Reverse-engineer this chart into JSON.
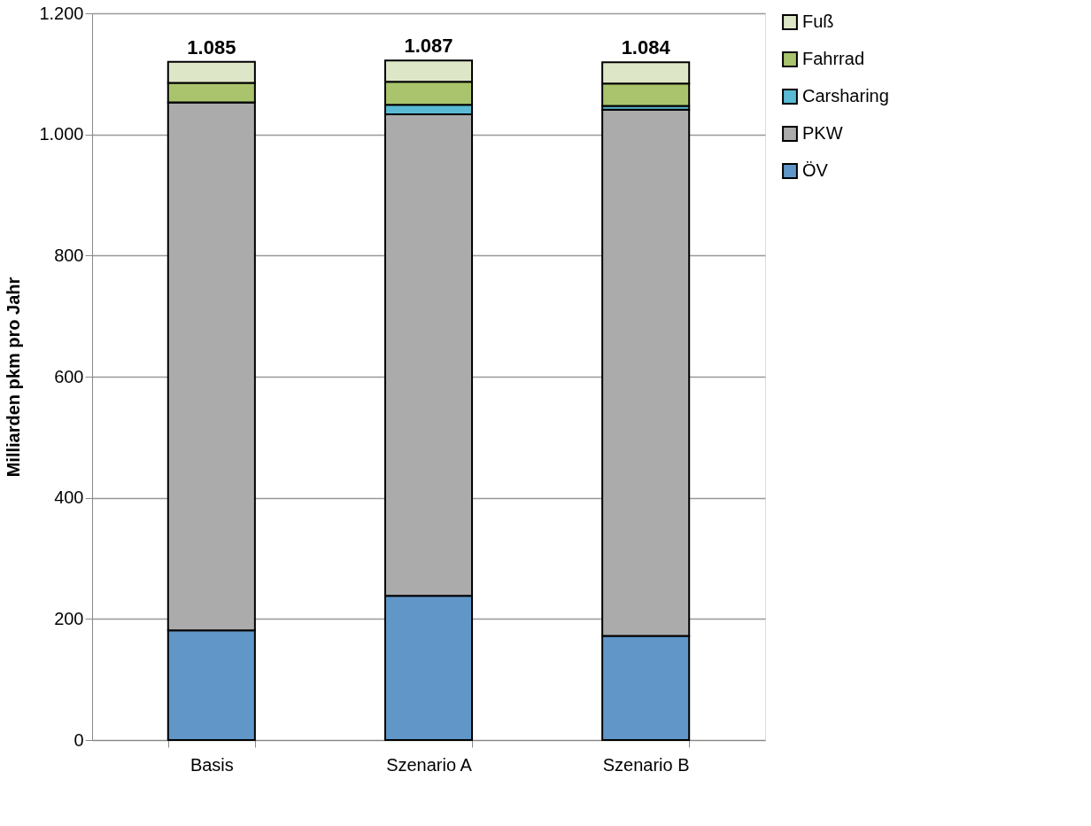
{
  "chart_data": {
    "type": "bar",
    "stacked": true,
    "ylabel": "Milliarden pkm pro Jahr",
    "categories": [
      "Basis",
      "Szenario A",
      "Szenario B"
    ],
    "series": [
      {
        "name": "ÖV",
        "color": "#6096c8",
        "values": [
          181,
          238,
          172
        ]
      },
      {
        "name": "PKW",
        "color": "#ababab",
        "values": [
          872,
          795,
          869
        ]
      },
      {
        "name": "Carsharing",
        "color": "#5bbad3",
        "values": [
          0,
          16,
          6
        ]
      },
      {
        "name": "Fahrrad",
        "color": "#a9c46c",
        "values": [
          32,
          38,
          37
        ]
      },
      {
        "name": "Fuß",
        "color": "#dee6c8",
        "values": [
          35,
          35,
          35
        ]
      }
    ],
    "ylim": [
      0,
      1200
    ],
    "yticks": [
      0,
      {
        "value": 200,
        "label": "200"
      },
      {
        "value": 400,
        "label": "400"
      },
      {
        "value": 600,
        "label": "600"
      },
      {
        "value": 800,
        "label": "800"
      },
      {
        "value": 1000,
        "label": "1.000"
      },
      {
        "value": 1200,
        "label": "1.200"
      }
    ],
    "grid": "y",
    "legend": "right",
    "annotations": [
      {
        "text": "1.085",
        "x": "Basis",
        "y": 1120
      },
      {
        "text": "1.087",
        "x": "Szenario A",
        "y": 1122
      },
      {
        "text": "1.084",
        "x": "Szenario B",
        "y": 1119
      }
    ]
  }
}
